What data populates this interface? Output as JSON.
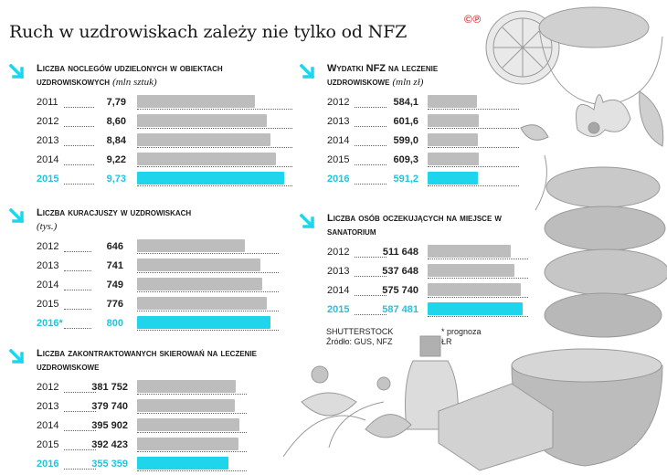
{
  "title": "Ruch w uzdrowiskach zależy nie tylko od NFZ",
  "logo": "©℗",
  "colors": {
    "highlight": "#1fd5ec",
    "bar": "#bdbdbd",
    "arrow": "#1fd5ec",
    "logo": "#d9363e"
  },
  "footer": {
    "source_line1": "SHUTTERSTOCK",
    "source_line2": "Źródło: GUS, NFZ",
    "note": "* prognoza",
    "author": "ŁR"
  },
  "chart_data": [
    {
      "type": "bar",
      "title": "Liczba noclegów udzielonych w obiektach uzdrowiskowych",
      "unit": "(mln sztuk)",
      "categories": [
        "2011",
        "2012",
        "2013",
        "2014",
        "2015"
      ],
      "labels": [
        "7,79",
        "8,60",
        "8,84",
        "9,22",
        "9,73"
      ],
      "values": [
        7.79,
        8.6,
        8.84,
        9.22,
        9.73
      ],
      "highlight": 4,
      "xlim": [
        0,
        10.3
      ]
    },
    {
      "type": "bar",
      "title": "Liczba kuracjuszy w uzdrowiskach",
      "unit": "(tys.)",
      "categories": [
        "2012",
        "2013",
        "2014",
        "2015",
        "2016*"
      ],
      "labels": [
        "646",
        "741",
        "749",
        "776",
        "800"
      ],
      "values": [
        646,
        741,
        749,
        776,
        800
      ],
      "highlight": 4,
      "xlim": [
        0,
        850
      ]
    },
    {
      "type": "bar",
      "title": "Liczba zakontraktowanych skierowań na leczenie uzdrowiskowe",
      "unit": "",
      "categories": [
        "2012",
        "2013",
        "2014",
        "2015",
        "2016"
      ],
      "labels": [
        "381 752",
        "379 740",
        "395 902",
        "392 423",
        "355 359"
      ],
      "values": [
        381752,
        379740,
        395902,
        392423,
        355359
      ],
      "highlight": 4,
      "xlim": [
        0,
        425000
      ]
    },
    {
      "type": "bar",
      "title": "Wydatki NFZ na leczenie uzdrowiskowe",
      "unit": "(mln zł)",
      "categories": [
        "2012",
        "2013",
        "2014",
        "2015",
        "2016"
      ],
      "labels": [
        "584,1",
        "601,6",
        "599,0",
        "609,3",
        "591,2"
      ],
      "values": [
        584.1,
        601.6,
        599.0,
        609.3,
        591.2
      ],
      "highlight": 4,
      "xlim": [
        0,
        1080
      ]
    },
    {
      "type": "bar",
      "title": "Liczba osób oczekujących na miejsce w sanatorium",
      "unit": "",
      "categories": [
        "2012",
        "2013",
        "2014",
        "2015"
      ],
      "labels": [
        "511 648",
        "537 648",
        "575 740",
        "587 481"
      ],
      "values": [
        511648,
        537648,
        575740,
        587481
      ],
      "highlight": 3,
      "xlim": [
        0,
        620000
      ]
    }
  ]
}
